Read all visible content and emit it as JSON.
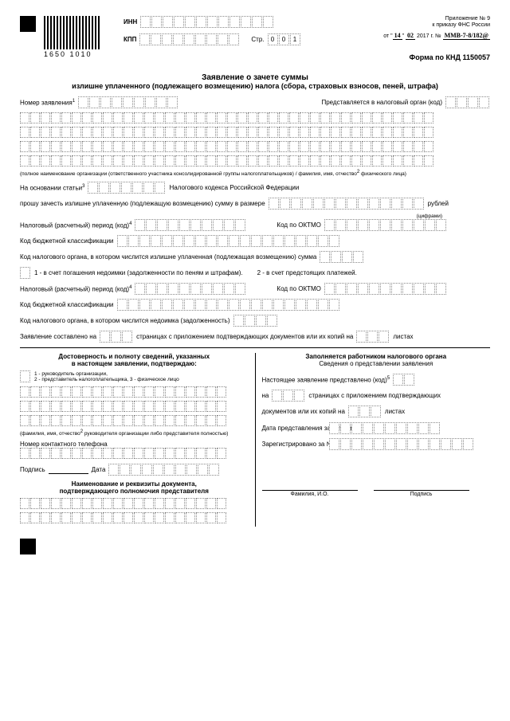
{
  "header": {
    "barcode_number": "1650 1010",
    "inn_label": "ИНН",
    "kpp_label": "КПП",
    "page_label": "Стр.",
    "page_value": "001",
    "appendix_line1": "Приложение № 9",
    "appendix_line2": "к приказу ФНС России",
    "date_prefix": "от",
    "date_day": "14",
    "date_month": "02",
    "date_year_text": "2017 г.",
    "order_no_label": "№",
    "order_no": "ММВ-7-8/182@"
  },
  "form_code": "Форма по КНД 1150057",
  "title_line1": "Заявление о зачете суммы",
  "title_line2": "излишне уплаченного (подлежащего возмещению) налога (сбора, страховых взносов, пеней, штрафа)",
  "f": {
    "app_no": "Номер заявления",
    "submitted_to": "Представляется в налоговый орган (код)",
    "org_note": "(полное наименование организации (ответственного участника консолидированной группы налогоплательщиков) / фамилия, имя, отчество",
    "org_note_tail": "физического лица)",
    "basis": "На основании статьи",
    "basis_tail": "Налогового кодекса Российской Федерации",
    "request": "прошу зачесть излишне уплаченную (подлежащую возмещению) сумму в размере",
    "rubles": "рублей",
    "digits": "(цифрами)",
    "period": "Налоговый (расчетный) период (код)",
    "oktmo": "Код по ОКТМО",
    "kbk": "Код бюджетной классификации",
    "organ_over": "Код налогового органа, в котором числится излишне уплаченная (подлежащая возмещению) сумма",
    "opt1": "1 - в счет погашения недоимки (задолженности по пеням и штрафам).",
    "opt2": "2 - в счет предстоящих платежей.",
    "organ_ned": "Код налогового органа, в котором числится недоимка (задолженность)",
    "composed": "Заявление составлено на",
    "pages_with": "страницах с приложением подтверждающих документов или их копий на",
    "sheets": "листах"
  },
  "left": {
    "title1": "Достоверность и полноту сведений, указанных",
    "title2": "в настоящем заявлении, подтверждаю:",
    "roles1": "1 - руководитель организации,",
    "roles2": "2 - представитель налогоплательщика, 3 - физическое лицо",
    "fio_note": "(фамилия, имя, отчество",
    "fio_note2": "руководителя организации либо представителя полностью)",
    "phone": "Номер контактного телефона",
    "sign": "Подпись",
    "date": "Дата",
    "doc_title1": "Наименование и реквизиты документа,",
    "doc_title2": "подтверждающего полномочия представителя"
  },
  "right": {
    "title1": "Заполняется работником налогового органа",
    "title2": "Сведения о представлении заявления",
    "presented": "Настоящее заявление представлено  (код)",
    "on": "на",
    "pages_attach": "страницах с приложением подтверждающих",
    "docs_copies": "документов или их копий  на",
    "sheets": "листах",
    "sub_date": "Дата представления заявления",
    "registered": "Зарегистрировано за №",
    "fio": "Фамилия, И.О.",
    "sign": "Подпись"
  },
  "cellcounts": {
    "inn": 12,
    "kpp": 9,
    "page": 3,
    "app_no": 9,
    "organ": 4,
    "name_row": 40,
    "article": 7,
    "amount": 14,
    "period": 10,
    "oktmo": 11,
    "kbk": 20,
    "one": 1,
    "composed": 3,
    "fio": 20,
    "phone": 20,
    "date": 10,
    "code5": 2,
    "reg": 13,
    "doc": 20
  }
}
